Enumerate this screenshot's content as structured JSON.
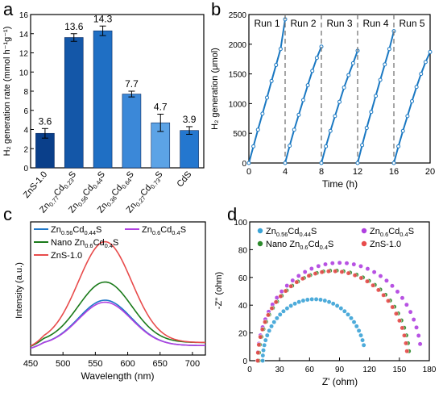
{
  "chart_data": [
    {
      "panel": "a",
      "type": "bar",
      "ylabel": "H₂ generation rate (mmol h⁻¹g⁻¹)",
      "ylim": [
        0,
        16
      ],
      "yticks": [
        0,
        2,
        4,
        6,
        8,
        10,
        12,
        14,
        16
      ],
      "categories": [
        "ZnS-1.0",
        "Zn0.77Cd0.23S",
        "Zn0.56Cd0.44S",
        "Zn0.36Cd0.64S",
        "Zn0.27Cd0.73S",
        "CdS"
      ],
      "category_labels": [
        [
          {
            "t": "ZnS-1.0"
          }
        ],
        [
          {
            "t": "Zn"
          },
          {
            "t": "0.77",
            "sub": true
          },
          {
            "t": "Cd"
          },
          {
            "t": "0.23",
            "sub": true
          },
          {
            "t": "S"
          }
        ],
        [
          {
            "t": "Zn"
          },
          {
            "t": "0.56",
            "sub": true
          },
          {
            "t": "Cd"
          },
          {
            "t": "0.44",
            "sub": true
          },
          {
            "t": "S"
          }
        ],
        [
          {
            "t": "Zn"
          },
          {
            "t": "0.36",
            "sub": true
          },
          {
            "t": "Cd"
          },
          {
            "t": "0.64",
            "sub": true
          },
          {
            "t": "S"
          }
        ],
        [
          {
            "t": "Zn"
          },
          {
            "t": "0.27",
            "sub": true
          },
          {
            "t": "Cd"
          },
          {
            "t": "0.73",
            "sub": true
          },
          {
            "t": "S"
          }
        ],
        [
          {
            "t": "CdS"
          }
        ]
      ],
      "values": [
        3.6,
        13.6,
        14.3,
        7.7,
        4.7,
        3.9
      ],
      "value_labels": [
        "3.6",
        "13.6",
        "14.3",
        "7.7",
        "4.7",
        "3.9"
      ],
      "errors": [
        0.5,
        0.4,
        0.5,
        0.3,
        0.9,
        0.4
      ],
      "colors": [
        "#0a3f8a",
        "#1457a8",
        "#1f6fc4",
        "#3b88d8",
        "#5ca3e6",
        "#2477cf"
      ]
    },
    {
      "panel": "b",
      "type": "line",
      "xlabel": "Time (h)",
      "ylabel": "H₂ generation (μmol)",
      "xlim": [
        0,
        20
      ],
      "ylim": [
        0,
        2500
      ],
      "xticks": [
        0,
        4,
        8,
        12,
        16,
        20
      ],
      "yticks": [
        0,
        500,
        1000,
        1500,
        2000,
        2500
      ],
      "runs": [
        {
          "name": "Run 1",
          "x": [
            0,
            0.5,
            1,
            1.5,
            2,
            2.5,
            3,
            3.5,
            4
          ],
          "y": [
            0,
            280,
            560,
            830,
            1100,
            1380,
            1650,
            1920,
            2420
          ]
        },
        {
          "name": "Run 2",
          "x": [
            4,
            4.5,
            5,
            5.5,
            6,
            6.5,
            7,
            7.5,
            8
          ],
          "y": [
            0,
            290,
            560,
            810,
            1060,
            1310,
            1550,
            1770,
            1960
          ]
        },
        {
          "name": "Run 3",
          "x": [
            8,
            8.5,
            9,
            9.5,
            10,
            10.5,
            11,
            11.5,
            12
          ],
          "y": [
            0,
            280,
            540,
            790,
            1030,
            1270,
            1480,
            1680,
            1890
          ]
        },
        {
          "name": "Run 4",
          "x": [
            12,
            12.5,
            13,
            13.5,
            14,
            14.5,
            15,
            15.5,
            16
          ],
          "y": [
            0,
            300,
            590,
            860,
            1130,
            1400,
            1660,
            1920,
            2220
          ]
        },
        {
          "name": "Run 5",
          "x": [
            16,
            16.5,
            17,
            17.5,
            18,
            18.5,
            19,
            19.5,
            20
          ],
          "y": [
            0,
            280,
            540,
            790,
            1040,
            1280,
            1500,
            1700,
            1870
          ]
        }
      ],
      "color": "#1a78c2"
    },
    {
      "panel": "c",
      "type": "line",
      "xlabel": "Wavelength (nm)",
      "ylabel": "Intensity (a.u.)",
      "xlim": [
        450,
        720
      ],
      "xticks": [
        450,
        500,
        550,
        600,
        650,
        700
      ],
      "series": [
        {
          "name": "Zn0.56Cd0.44S",
          "label": [
            {
              "t": "Zn"
            },
            {
              "t": "0.56",
              "sub": true
            },
            {
              "t": "Cd"
            },
            {
              "t": "0.44",
              "sub": true
            },
            {
              "t": "S"
            }
          ],
          "color": "#1f77c9",
          "peak": 0.45,
          "base": 0.07
        },
        {
          "name": "Zn0.6Cd0.4S",
          "label": [
            {
              "t": "Zn"
            },
            {
              "t": "0.6",
              "sub": true
            },
            {
              "t": "Cd"
            },
            {
              "t": "0.4",
              "sub": true
            },
            {
              "t": "S"
            }
          ],
          "color": "#b040e0",
          "peak": 0.43,
          "base": 0.07
        },
        {
          "name": "Nano Zn0.6Cd0.4S",
          "label": [
            {
              "t": "Nano Zn"
            },
            {
              "t": "0.6",
              "sub": true
            },
            {
              "t": "Cd"
            },
            {
              "t": "0.4",
              "sub": true
            },
            {
              "t": "S"
            }
          ],
          "color": "#1a7a1a",
          "peak": 0.6,
          "base": 0.1
        },
        {
          "name": "ZnS-1.0",
          "label": [
            {
              "t": "ZnS-1.0"
            }
          ],
          "color": "#e84b4b",
          "peak": 1.0,
          "base": 0.1
        }
      ]
    },
    {
      "panel": "d",
      "type": "scatter",
      "xlabel": "Z' (ohm)",
      "ylabel": "-Z'' (ohm)",
      "xlim": [
        0,
        180
      ],
      "ylim": [
        0,
        100
      ],
      "xticks": [
        0,
        30,
        60,
        90,
        120,
        150,
        180
      ],
      "yticks": [
        0,
        20,
        40,
        60,
        80,
        100
      ],
      "series": [
        {
          "name": "Zn0.56Cd0.44S",
          "label": [
            {
              "t": "Zn"
            },
            {
              "t": "0.56",
              "sub": true
            },
            {
              "t": "Cd"
            },
            {
              "t": "0.44",
              "sub": true
            },
            {
              "t": "S"
            }
          ],
          "color": "#3aa3d6",
          "x0": 13,
          "x1": 116,
          "end_y": 13
        },
        {
          "name": "Zn0.6Cd0.4S",
          "label": [
            {
              "t": "Zn"
            },
            {
              "t": "0.6",
              "sub": true
            },
            {
              "t": "Cd"
            },
            {
              "t": "0.4",
              "sub": true
            },
            {
              "t": "S"
            }
          ],
          "color": "#b040e0",
          "x0": 8,
          "x1": 172,
          "end_y": 14
        },
        {
          "name": "Nano Zn0.6Cd0.4S",
          "label": [
            {
              "t": "Nano Zn"
            },
            {
              "t": "0.6",
              "sub": true
            },
            {
              "t": "Cd"
            },
            {
              "t": "0.4",
              "sub": true
            },
            {
              "t": "S"
            }
          ],
          "color": "#2c8a2c",
          "x0": 9,
          "x1": 160,
          "end_y": 8
        },
        {
          "name": "ZnS-1.0",
          "label": [
            {
              "t": "ZnS-1.0"
            }
          ],
          "color": "#e84b4b",
          "x0": 8,
          "x1": 158,
          "end_y": 8
        }
      ]
    }
  ],
  "panel_letters": [
    "a",
    "b",
    "c",
    "d"
  ]
}
